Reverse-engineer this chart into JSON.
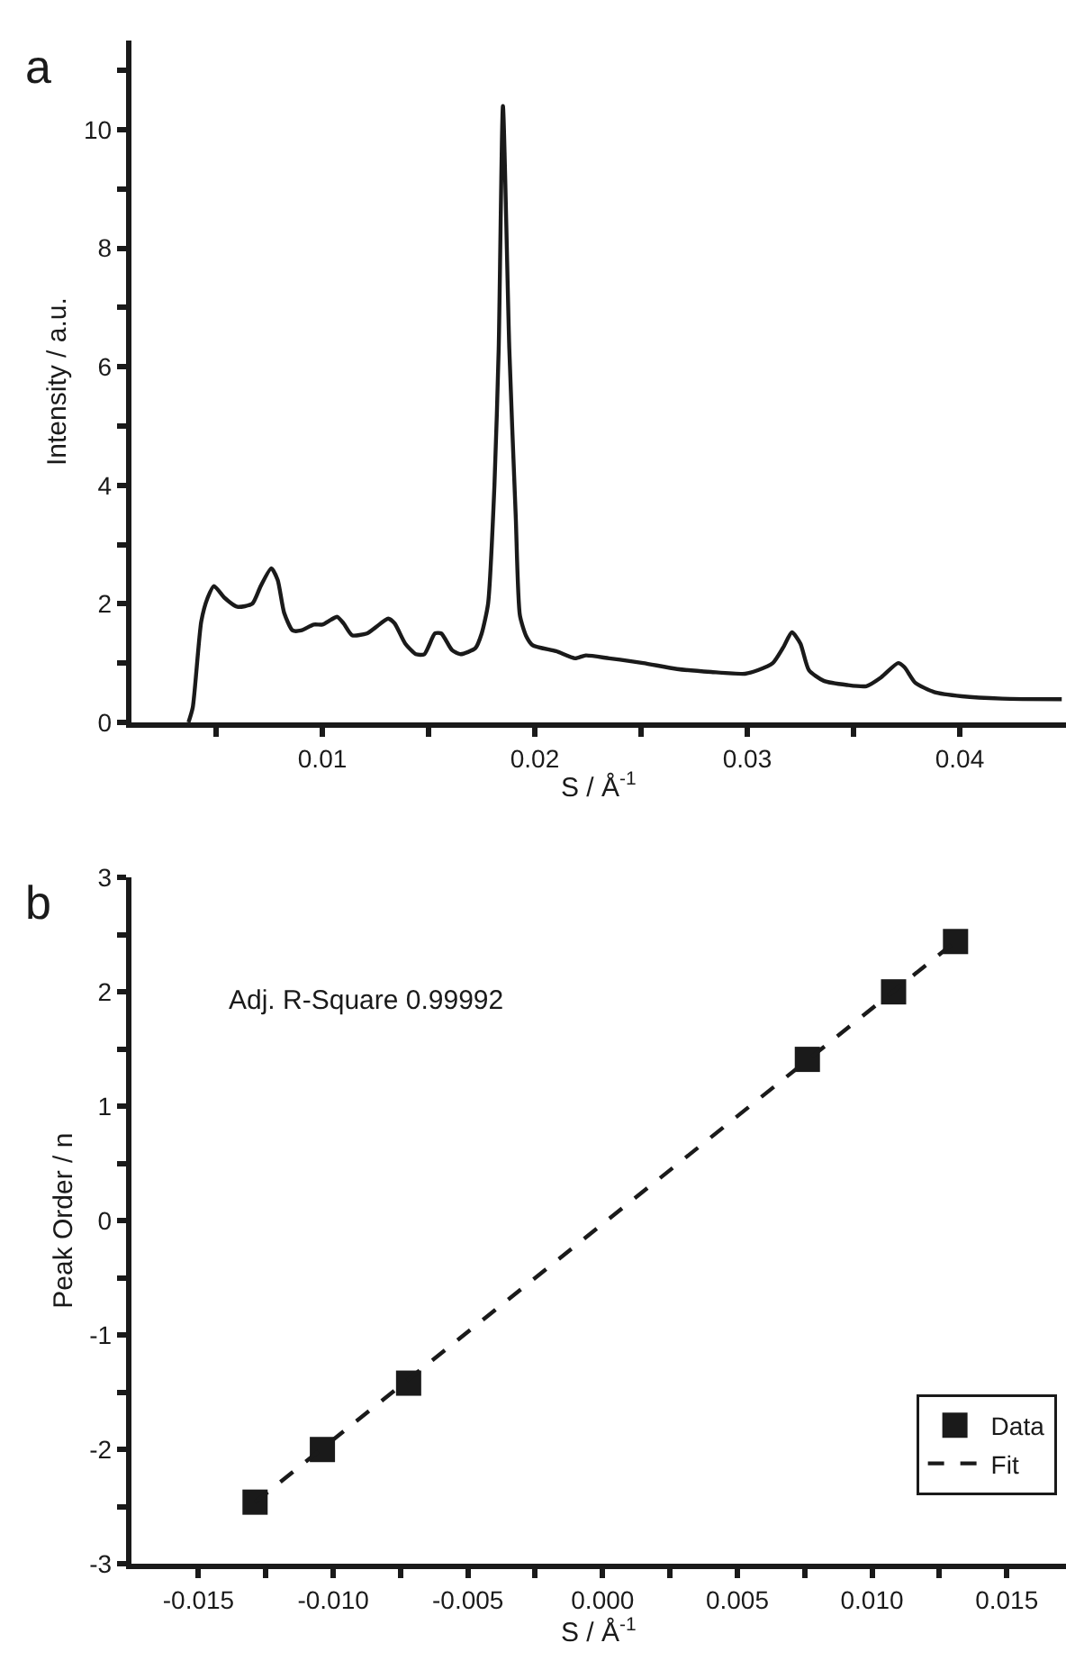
{
  "chart_data": [
    {
      "type": "line",
      "title": "a",
      "xlabel": "S / Å$^{-1}$",
      "ylabel": "Intensity / a.u.",
      "xlim": [
        0.001,
        0.045
      ],
      "ylim": [
        0,
        11.5
      ],
      "legend": false,
      "xticks": [
        {
          "value": 0.005,
          "label": null
        },
        {
          "value": 0.01,
          "label": "0.01"
        },
        {
          "value": 0.015,
          "label": null
        },
        {
          "value": 0.02,
          "label": "0.02"
        },
        {
          "value": 0.025,
          "label": null
        },
        {
          "value": 0.03,
          "label": "0.03"
        },
        {
          "value": 0.035,
          "label": null
        },
        {
          "value": 0.04,
          "label": "0.04"
        }
      ],
      "yticks": [
        0,
        {
          "value": 1,
          "label": null
        },
        2,
        {
          "value": 3,
          "label": null
        },
        4,
        {
          "value": 5,
          "label": null
        },
        6,
        {
          "value": 7,
          "label": null
        },
        8,
        {
          "value": 9,
          "label": null
        },
        10,
        {
          "value": 11,
          "label": null
        }
      ],
      "series": [
        {
          "color": "#1a1a1a",
          "x": [
            0.0037,
            0.0039,
            0.0043,
            0.0046,
            0.0049,
            0.0054,
            0.006,
            0.0067,
            0.0071,
            0.0076,
            0.0079,
            0.0082,
            0.0086,
            0.009,
            0.0096,
            0.01,
            0.0104,
            0.0107,
            0.011,
            0.0114,
            0.0121,
            0.0125,
            0.0131,
            0.0134,
            0.0139,
            0.0144,
            0.0148,
            0.0153,
            0.0156,
            0.0161,
            0.0165,
            0.0172,
            0.0175,
            0.0178,
            0.0181,
            0.0183,
            0.0185,
            0.0188,
            0.0191,
            0.0193,
            0.0196,
            0.0199,
            0.021,
            0.0219,
            0.0224,
            0.0235,
            0.0251,
            0.0267,
            0.0283,
            0.0299,
            0.0305,
            0.0312,
            0.0317,
            0.0321,
            0.0325,
            0.0329,
            0.0336,
            0.0347,
            0.0356,
            0.0363,
            0.0371,
            0.0374,
            0.0379,
            0.0388,
            0.0401,
            0.042,
            0.0448
          ],
          "values": [
            0,
            0.25,
            1.7,
            2.1,
            2.3,
            2.1,
            1.95,
            2.0,
            2.3,
            2.6,
            2.4,
            1.85,
            1.55,
            1.55,
            1.65,
            1.65,
            1.73,
            1.78,
            1.67,
            1.47,
            1.5,
            1.6,
            1.75,
            1.67,
            1.33,
            1.15,
            1.15,
            1.5,
            1.5,
            1.22,
            1.15,
            1.25,
            1.5,
            2.0,
            4.0,
            6.3,
            10.4,
            6.3,
            3.5,
            1.8,
            1.45,
            1.3,
            1.2,
            1.08,
            1.13,
            1.08,
            1.0,
            0.9,
            0.85,
            0.82,
            0.88,
            1.0,
            1.27,
            1.52,
            1.33,
            0.88,
            0.7,
            0.63,
            0.61,
            0.76,
            1.0,
            0.93,
            0.67,
            0.51,
            0.44,
            0.4,
            0.39
          ]
        }
      ]
    },
    {
      "type": "scatter",
      "title": "b",
      "xlabel": "S / Å$^{-1}$",
      "ylabel": "Peak Order / n",
      "xlim": [
        -0.0175,
        0.0172
      ],
      "ylim": [
        -3,
        3
      ],
      "legend": "bottom right",
      "xticks": [
        {
          "value": -0.015,
          "label": "-0.015"
        },
        {
          "value": -0.0125,
          "label": null
        },
        {
          "value": -0.01,
          "label": "-0.010"
        },
        {
          "value": -0.0075,
          "label": null
        },
        {
          "value": -0.005,
          "label": "-0.005"
        },
        {
          "value": -0.0025,
          "label": null
        },
        {
          "value": 0,
          "label": "0.000"
        },
        {
          "value": 0.0025,
          "label": null
        },
        {
          "value": 0.005,
          "label": "0.005"
        },
        {
          "value": 0.0075,
          "label": null
        },
        {
          "value": 0.01,
          "label": "0.010"
        },
        {
          "value": 0.0125,
          "label": null
        },
        {
          "value": 0.015,
          "label": "0.015"
        }
      ],
      "yticks": [
        -3,
        {
          "value": -2.5,
          "label": null
        },
        -2,
        {
          "value": -1.5,
          "label": null
        },
        -1,
        {
          "value": -0.5,
          "label": null
        },
        0,
        {
          "value": 0.5,
          "label": null
        },
        1,
        {
          "value": 1.5,
          "label": null
        },
        2,
        {
          "value": 2.5,
          "label": null
        },
        3
      ],
      "annotations": [
        "Adj. R-Square 0.99992"
      ],
      "series": [
        {
          "name": "Data",
          "type": "scatter",
          "marker": "square",
          "color": "#1a1a1a",
          "x": [
            -0.0129,
            -0.0104,
            -0.0072,
            0.0076,
            0.0108,
            0.0131
          ],
          "values": [
            -2.46,
            -2.0,
            -1.42,
            1.41,
            2.0,
            2.44
          ]
        },
        {
          "name": "Fit",
          "type": "line",
          "line_style": "dashed",
          "color": "#1a1a1a",
          "x": [
            -0.0129,
            0.0131
          ],
          "values": [
            -2.46,
            2.44
          ]
        }
      ]
    }
  ]
}
